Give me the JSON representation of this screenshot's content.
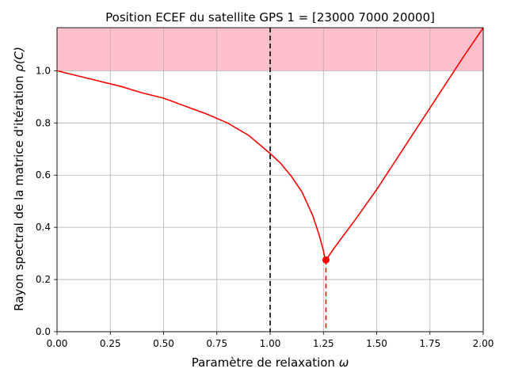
{
  "chart_data": {
    "type": "line",
    "title": "Position ECEF du satellite GPS 1 = [23000  7000 20000]",
    "xlabel_text": "Paramètre de relaxation ",
    "xlabel_symbol": "ω",
    "ylabel_text": "Rayon spectral de la matrice d'itération ",
    "ylabel_symbol": "ρ(C)",
    "xlim": [
      0,
      2
    ],
    "ylim": [
      0,
      1.165
    ],
    "grid": true,
    "xticks": [
      "0.00",
      "0.25",
      "0.50",
      "0.75",
      "1.00",
      "1.25",
      "1.50",
      "1.75",
      "2.00"
    ],
    "yticks": [
      "0.0",
      "0.2",
      "0.4",
      "0.6",
      "0.8",
      "1.0"
    ],
    "divergence_region": {
      "y_from": 1.0,
      "color": "#ffc0cb"
    },
    "reference_line": {
      "x": 1.0,
      "style": "dashed",
      "color": "#000000"
    },
    "optimum": {
      "x": 1.262,
      "y": 0.275,
      "color": "#ff0000"
    },
    "series": [
      {
        "color": "#ff0000",
        "x": [
          0.0,
          0.1,
          0.2,
          0.3,
          0.4,
          0.5,
          0.6,
          0.7,
          0.8,
          0.9,
          1.0,
          1.05,
          1.1,
          1.15,
          1.2,
          1.23,
          1.25,
          1.255,
          1.262,
          1.3,
          1.4,
          1.5,
          1.6,
          1.7,
          1.8,
          1.9,
          2.0
        ],
        "y": [
          1.0,
          0.98,
          0.96,
          0.94,
          0.915,
          0.895,
          0.865,
          0.835,
          0.8,
          0.752,
          0.683,
          0.645,
          0.595,
          0.535,
          0.445,
          0.37,
          0.31,
          0.29,
          0.275,
          0.32,
          0.43,
          0.545,
          0.67,
          0.795,
          0.92,
          1.045,
          1.165
        ]
      }
    ]
  }
}
